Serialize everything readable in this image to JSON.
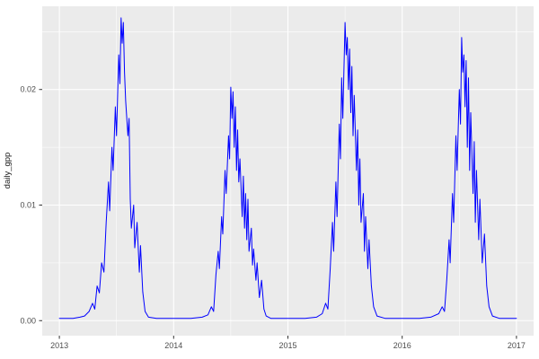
{
  "chart_data": {
    "type": "line",
    "title": "",
    "xlabel": "",
    "ylabel": "daily_gpp",
    "legend": "none",
    "grid": "major+minor",
    "xlim": [
      2012.85,
      2017.15
    ],
    "ylim": [
      -0.0013,
      0.0272
    ],
    "x_ticks": [
      2013,
      2014,
      2015,
      2016,
      2017
    ],
    "x_tick_labels": [
      "2013",
      "2014",
      "2015",
      "2016",
      "2017"
    ],
    "x_minor": [
      2013.5,
      2014.5,
      2015.5,
      2016.5
    ],
    "y_ticks": [
      0,
      0.01,
      0.02
    ],
    "y_tick_labels": [
      "0.00",
      "0.01",
      "0.02"
    ],
    "y_minor": [
      0.005,
      0.015,
      0.025
    ],
    "style": {
      "panel_bg": "#EBEBEB",
      "grid_color": "#FFFFFF",
      "line_color": "#0000FF",
      "tick_label_color": "#4D4D4D",
      "axis_tick_color": "#333333",
      "outer_bg": "#FFFFFF"
    },
    "series": [
      {
        "name": "daily_gpp",
        "x": [
          2013.0,
          2013.06,
          2013.12,
          2013.18,
          2013.22,
          2013.26,
          2013.29,
          2013.31,
          2013.33,
          2013.35,
          2013.37,
          2013.39,
          2013.41,
          2013.43,
          2013.44,
          2013.46,
          2013.47,
          2013.49,
          2013.5,
          2013.52,
          2013.53,
          2013.54,
          2013.55,
          2013.56,
          2013.57,
          2013.58,
          2013.6,
          2013.61,
          2013.62,
          2013.63,
          2013.65,
          2013.66,
          2013.68,
          2013.7,
          2013.71,
          2013.73,
          2013.75,
          2013.78,
          2013.85,
          2013.95,
          2014.05,
          2014.15,
          2014.25,
          2014.3,
          2014.33,
          2014.35,
          2014.37,
          2014.39,
          2014.4,
          2014.42,
          2014.43,
          2014.45,
          2014.46,
          2014.48,
          2014.49,
          2014.5,
          2014.51,
          2014.52,
          2014.53,
          2014.54,
          2014.55,
          2014.56,
          2014.57,
          2014.58,
          2014.6,
          2014.61,
          2014.62,
          2014.63,
          2014.64,
          2014.65,
          2014.66,
          2014.68,
          2014.69,
          2014.7,
          2014.72,
          2014.73,
          2014.75,
          2014.77,
          2014.79,
          2014.81,
          2014.85,
          2014.95,
          2015.05,
          2015.15,
          2015.25,
          2015.3,
          2015.33,
          2015.35,
          2015.37,
          2015.39,
          2015.4,
          2015.42,
          2015.43,
          2015.45,
          2015.46,
          2015.47,
          2015.48,
          2015.5,
          2015.51,
          2015.52,
          2015.53,
          2015.54,
          2015.55,
          2015.56,
          2015.57,
          2015.58,
          2015.6,
          2015.61,
          2015.62,
          2015.63,
          2015.64,
          2015.66,
          2015.67,
          2015.68,
          2015.7,
          2015.71,
          2015.73,
          2015.75,
          2015.78,
          2015.85,
          2015.95,
          2016.05,
          2016.15,
          2016.25,
          2016.32,
          2016.35,
          2016.37,
          2016.39,
          2016.41,
          2016.42,
          2016.44,
          2016.45,
          2016.47,
          2016.48,
          2016.5,
          2016.51,
          2016.52,
          2016.53,
          2016.54,
          2016.55,
          2016.56,
          2016.57,
          2016.58,
          2016.59,
          2016.6,
          2016.62,
          2016.63,
          2016.64,
          2016.65,
          2016.67,
          2016.68,
          2016.7,
          2016.72,
          2016.74,
          2016.76,
          2016.79,
          2016.85,
          2016.95,
          2017.0
        ],
        "y": [
          0.0002,
          0.0002,
          0.0002,
          0.0003,
          0.0004,
          0.0008,
          0.0015,
          0.001,
          0.003,
          0.0024,
          0.005,
          0.0042,
          0.0085,
          0.012,
          0.0095,
          0.015,
          0.013,
          0.0185,
          0.016,
          0.023,
          0.0205,
          0.0262,
          0.024,
          0.0258,
          0.0215,
          0.019,
          0.016,
          0.0175,
          0.0105,
          0.008,
          0.01,
          0.0063,
          0.0085,
          0.0042,
          0.0065,
          0.0025,
          0.0008,
          0.0003,
          0.0002,
          0.0002,
          0.0002,
          0.0002,
          0.0003,
          0.0005,
          0.0012,
          0.0008,
          0.004,
          0.006,
          0.0045,
          0.009,
          0.0075,
          0.013,
          0.011,
          0.016,
          0.014,
          0.0202,
          0.0175,
          0.0198,
          0.015,
          0.0185,
          0.013,
          0.0165,
          0.012,
          0.014,
          0.009,
          0.0125,
          0.008,
          0.011,
          0.007,
          0.0105,
          0.006,
          0.008,
          0.0048,
          0.0062,
          0.0035,
          0.005,
          0.002,
          0.0035,
          0.001,
          0.0004,
          0.0002,
          0.0002,
          0.0002,
          0.0002,
          0.0003,
          0.0006,
          0.0015,
          0.001,
          0.0045,
          0.0085,
          0.006,
          0.012,
          0.009,
          0.017,
          0.014,
          0.021,
          0.0175,
          0.0258,
          0.023,
          0.0245,
          0.02,
          0.0235,
          0.018,
          0.022,
          0.016,
          0.0195,
          0.013,
          0.0165,
          0.01,
          0.014,
          0.0085,
          0.011,
          0.006,
          0.009,
          0.0045,
          0.007,
          0.003,
          0.0012,
          0.0004,
          0.0002,
          0.0002,
          0.0002,
          0.0002,
          0.0003,
          0.0006,
          0.0012,
          0.0008,
          0.0035,
          0.007,
          0.005,
          0.011,
          0.0085,
          0.016,
          0.013,
          0.02,
          0.017,
          0.0245,
          0.0215,
          0.023,
          0.0185,
          0.0225,
          0.015,
          0.021,
          0.013,
          0.018,
          0.011,
          0.0155,
          0.0085,
          0.013,
          0.007,
          0.0105,
          0.005,
          0.0075,
          0.003,
          0.0012,
          0.0004,
          0.0002,
          0.0002,
          0.0002
        ]
      }
    ]
  }
}
